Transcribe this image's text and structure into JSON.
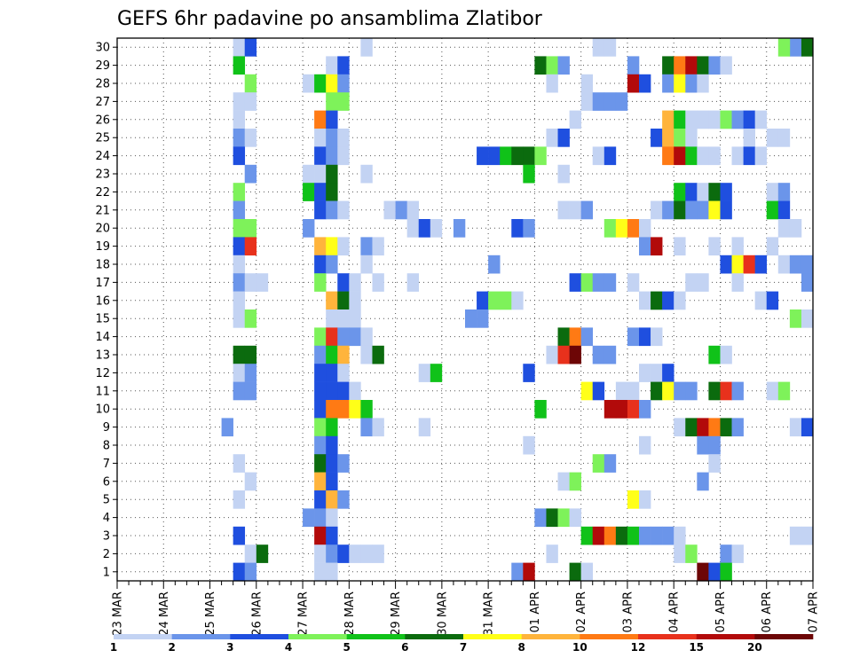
{
  "chart_data": {
    "type": "heatmap",
    "title": "GEFS 6hr padavine po ansamblima Zlatibor",
    "x_tick_labels": [
      "23 MAR",
      "24 MAR",
      "25 MAR",
      "26 MAR",
      "27 MAR",
      "28 MAR",
      "29 MAR",
      "30 MAR",
      "31 MAR",
      "01 APR",
      "02 APR",
      "03 APR",
      "04 APR",
      "05 APR",
      "06 APR",
      "07 APR"
    ],
    "y_tick_labels": [
      "1",
      "2",
      "3",
      "4",
      "5",
      "6",
      "7",
      "8",
      "9",
      "10",
      "11",
      "12",
      "13",
      "14",
      "15",
      "16",
      "17",
      "18",
      "19",
      "20",
      "21",
      "22",
      "23",
      "24",
      "25",
      "26",
      "27",
      "28",
      "29",
      "30"
    ],
    "x_range_steps": [
      0,
      60
    ],
    "steps_per_day": 4,
    "y_range_members": [
      0,
      30
    ],
    "grid": true,
    "legend": {
      "placement": "bottom",
      "levels": [
        "1",
        "2",
        "3",
        "4",
        "5",
        "6",
        "7",
        "8",
        "10",
        "12",
        "15",
        "20"
      ],
      "colors": [
        "#c3d3f3",
        "#6b95ea",
        "#1f4fdf",
        "#7ef25a",
        "#10c219",
        "#0b6b0e",
        "#ffff18",
        "#ffb43c",
        "#ff7a14",
        "#e8311c",
        "#b20a0a",
        "#6d0606"
      ]
    },
    "cells": [
      [
        30,
        10,
        1
      ],
      [
        30,
        11,
        3
      ],
      [
        30,
        21,
        1
      ],
      [
        30,
        41,
        1
      ],
      [
        30,
        42,
        1
      ],
      [
        30,
        58,
        2
      ],
      [
        30,
        57,
        4
      ],
      [
        30,
        59,
        6
      ],
      [
        29,
        10,
        5
      ],
      [
        29,
        18,
        1
      ],
      [
        29,
        19,
        3
      ],
      [
        29,
        36,
        6
      ],
      [
        29,
        37,
        4
      ],
      [
        29,
        38,
        2
      ],
      [
        29,
        44,
        2
      ],
      [
        29,
        47,
        6
      ],
      [
        29,
        48,
        9
      ],
      [
        29,
        49,
        11
      ],
      [
        29,
        50,
        6
      ],
      [
        29,
        51,
        2
      ],
      [
        29,
        52,
        1
      ],
      [
        28,
        11,
        4
      ],
      [
        28,
        16,
        1
      ],
      [
        28,
        17,
        5
      ],
      [
        28,
        18,
        7
      ],
      [
        28,
        19,
        2
      ],
      [
        28,
        37,
        1
      ],
      [
        28,
        40,
        1
      ],
      [
        28,
        44,
        11
      ],
      [
        28,
        45,
        3
      ],
      [
        28,
        47,
        2
      ],
      [
        28,
        48,
        7
      ],
      [
        28,
        49,
        2
      ],
      [
        28,
        50,
        1
      ],
      [
        27,
        10,
        1
      ],
      [
        27,
        11,
        1
      ],
      [
        27,
        18,
        4
      ],
      [
        27,
        19,
        4
      ],
      [
        27,
        40,
        1
      ],
      [
        27,
        41,
        2
      ],
      [
        27,
        42,
        2
      ],
      [
        27,
        43,
        2
      ],
      [
        26,
        10,
        1
      ],
      [
        26,
        17,
        9
      ],
      [
        26,
        18,
        3
      ],
      [
        26,
        39,
        1
      ],
      [
        26,
        47,
        8
      ],
      [
        26,
        48,
        5
      ],
      [
        26,
        49,
        1
      ],
      [
        26,
        50,
        1
      ],
      [
        26,
        51,
        1
      ],
      [
        26,
        52,
        4
      ],
      [
        26,
        53,
        2
      ],
      [
        26,
        54,
        3
      ],
      [
        26,
        55,
        1
      ],
      [
        25,
        10,
        2
      ],
      [
        25,
        11,
        1
      ],
      [
        25,
        17,
        1
      ],
      [
        25,
        18,
        2
      ],
      [
        25,
        19,
        1
      ],
      [
        25,
        37,
        1
      ],
      [
        25,
        38,
        3
      ],
      [
        25,
        46,
        3
      ],
      [
        25,
        47,
        8
      ],
      [
        25,
        48,
        4
      ],
      [
        25,
        49,
        1
      ],
      [
        25,
        54,
        1
      ],
      [
        25,
        56,
        1
      ],
      [
        25,
        57,
        1
      ],
      [
        24,
        10,
        3
      ],
      [
        24,
        17,
        3
      ],
      [
        24,
        18,
        2
      ],
      [
        24,
        19,
        1
      ],
      [
        24,
        31,
        3
      ],
      [
        24,
        32,
        3
      ],
      [
        24,
        33,
        5
      ],
      [
        24,
        34,
        6
      ],
      [
        24,
        35,
        6
      ],
      [
        24,
        36,
        4
      ],
      [
        24,
        41,
        1
      ],
      [
        24,
        42,
        3
      ],
      [
        24,
        47,
        9
      ],
      [
        24,
        48,
        11
      ],
      [
        24,
        49,
        5
      ],
      [
        24,
        50,
        1
      ],
      [
        24,
        51,
        1
      ],
      [
        24,
        53,
        1
      ],
      [
        24,
        54,
        3
      ],
      [
        24,
        55,
        1
      ],
      [
        23,
        11,
        2
      ],
      [
        23,
        16,
        1
      ],
      [
        23,
        17,
        1
      ],
      [
        23,
        18,
        6
      ],
      [
        23,
        21,
        1
      ],
      [
        23,
        35,
        5
      ],
      [
        23,
        38,
        1
      ],
      [
        22,
        10,
        4
      ],
      [
        22,
        16,
        5
      ],
      [
        22,
        17,
        3
      ],
      [
        22,
        18,
        6
      ],
      [
        22,
        48,
        5
      ],
      [
        22,
        49,
        3
      ],
      [
        22,
        50,
        1
      ],
      [
        22,
        51,
        6
      ],
      [
        22,
        52,
        3
      ],
      [
        22,
        56,
        1
      ],
      [
        22,
        57,
        2
      ],
      [
        21,
        10,
        2
      ],
      [
        21,
        17,
        3
      ],
      [
        21,
        18,
        2
      ],
      [
        21,
        19,
        1
      ],
      [
        21,
        23,
        1
      ],
      [
        21,
        24,
        2
      ],
      [
        21,
        25,
        1
      ],
      [
        21,
        38,
        1
      ],
      [
        21,
        39,
        1
      ],
      [
        21,
        40,
        2
      ],
      [
        21,
        46,
        1
      ],
      [
        21,
        47,
        2
      ],
      [
        21,
        48,
        6
      ],
      [
        21,
        49,
        2
      ],
      [
        21,
        50,
        2
      ],
      [
        21,
        51,
        7
      ],
      [
        21,
        52,
        3
      ],
      [
        21,
        56,
        5
      ],
      [
        21,
        57,
        3
      ],
      [
        20,
        10,
        4
      ],
      [
        20,
        11,
        4
      ],
      [
        20,
        16,
        2
      ],
      [
        20,
        25,
        1
      ],
      [
        20,
        26,
        3
      ],
      [
        20,
        27,
        1
      ],
      [
        20,
        29,
        2
      ],
      [
        20,
        34,
        3
      ],
      [
        20,
        35,
        2
      ],
      [
        20,
        42,
        4
      ],
      [
        20,
        43,
        7
      ],
      [
        20,
        44,
        9
      ],
      [
        20,
        45,
        1
      ],
      [
        20,
        57,
        1
      ],
      [
        20,
        58,
        1
      ],
      [
        19,
        10,
        3
      ],
      [
        19,
        11,
        10
      ],
      [
        19,
        17,
        8
      ],
      [
        19,
        18,
        7
      ],
      [
        19,
        19,
        1
      ],
      [
        19,
        21,
        2
      ],
      [
        19,
        22,
        1
      ],
      [
        19,
        45,
        2
      ],
      [
        19,
        46,
        11
      ],
      [
        19,
        48,
        1
      ],
      [
        19,
        51,
        1
      ],
      [
        19,
        53,
        1
      ],
      [
        19,
        56,
        1
      ],
      [
        18,
        10,
        1
      ],
      [
        18,
        17,
        3
      ],
      [
        18,
        18,
        2
      ],
      [
        18,
        21,
        1
      ],
      [
        18,
        32,
        2
      ],
      [
        18,
        52,
        3
      ],
      [
        18,
        53,
        7
      ],
      [
        18,
        54,
        10
      ],
      [
        18,
        55,
        3
      ],
      [
        18,
        57,
        1
      ],
      [
        18,
        58,
        2
      ],
      [
        18,
        59,
        2
      ],
      [
        17,
        10,
        2
      ],
      [
        17,
        11,
        1
      ],
      [
        17,
        12,
        1
      ],
      [
        17,
        17,
        4
      ],
      [
        17,
        19,
        3
      ],
      [
        17,
        20,
        1
      ],
      [
        17,
        22,
        1
      ],
      [
        17,
        25,
        1
      ],
      [
        17,
        39,
        3
      ],
      [
        17,
        40,
        4
      ],
      [
        17,
        41,
        2
      ],
      [
        17,
        42,
        2
      ],
      [
        17,
        44,
        1
      ],
      [
        17,
        49,
        1
      ],
      [
        17,
        50,
        1
      ],
      [
        17,
        53,
        1
      ],
      [
        17,
        59,
        2
      ],
      [
        16,
        10,
        1
      ],
      [
        16,
        18,
        8
      ],
      [
        16,
        19,
        6
      ],
      [
        16,
        20,
        1
      ],
      [
        16,
        31,
        3
      ],
      [
        16,
        32,
        4
      ],
      [
        16,
        33,
        4
      ],
      [
        16,
        34,
        1
      ],
      [
        16,
        45,
        1
      ],
      [
        16,
        46,
        6
      ],
      [
        16,
        47,
        3
      ],
      [
        16,
        48,
        1
      ],
      [
        16,
        55,
        1
      ],
      [
        16,
        56,
        3
      ],
      [
        15,
        10,
        1
      ],
      [
        15,
        11,
        4
      ],
      [
        15,
        18,
        1
      ],
      [
        15,
        19,
        1
      ],
      [
        15,
        20,
        1
      ],
      [
        15,
        30,
        2
      ],
      [
        15,
        31,
        2
      ],
      [
        15,
        58,
        4
      ],
      [
        15,
        59,
        1
      ],
      [
        14,
        17,
        4
      ],
      [
        14,
        18,
        10
      ],
      [
        14,
        19,
        2
      ],
      [
        14,
        20,
        2
      ],
      [
        14,
        21,
        1
      ],
      [
        14,
        38,
        6
      ],
      [
        14,
        39,
        9
      ],
      [
        14,
        40,
        2
      ],
      [
        14,
        44,
        2
      ],
      [
        14,
        45,
        3
      ],
      [
        14,
        46,
        1
      ],
      [
        13,
        10,
        6
      ],
      [
        13,
        11,
        6
      ],
      [
        13,
        17,
        2
      ],
      [
        13,
        18,
        5
      ],
      [
        13,
        19,
        8
      ],
      [
        13,
        21,
        1
      ],
      [
        13,
        22,
        6
      ],
      [
        13,
        37,
        1
      ],
      [
        13,
        38,
        10
      ],
      [
        13,
        39,
        12
      ],
      [
        13,
        41,
        2
      ],
      [
        13,
        42,
        2
      ],
      [
        13,
        51,
        5
      ],
      [
        13,
        52,
        1
      ],
      [
        12,
        10,
        1
      ],
      [
        12,
        11,
        2
      ],
      [
        12,
        17,
        3
      ],
      [
        12,
        18,
        3
      ],
      [
        12,
        19,
        1
      ],
      [
        12,
        26,
        1
      ],
      [
        12,
        27,
        5
      ],
      [
        12,
        35,
        3
      ],
      [
        12,
        45,
        1
      ],
      [
        12,
        46,
        1
      ],
      [
        12,
        47,
        3
      ],
      [
        11,
        10,
        2
      ],
      [
        11,
        11,
        2
      ],
      [
        11,
        17,
        3
      ],
      [
        11,
        18,
        3
      ],
      [
        11,
        19,
        3
      ],
      [
        11,
        20,
        1
      ],
      [
        11,
        40,
        7
      ],
      [
        11,
        41,
        3
      ],
      [
        11,
        43,
        1
      ],
      [
        11,
        44,
        1
      ],
      [
        11,
        46,
        6
      ],
      [
        11,
        47,
        7
      ],
      [
        11,
        48,
        2
      ],
      [
        11,
        49,
        2
      ],
      [
        11,
        51,
        6
      ],
      [
        11,
        52,
        10
      ],
      [
        11,
        53,
        2
      ],
      [
        11,
        56,
        1
      ],
      [
        11,
        57,
        4
      ],
      [
        10,
        17,
        3
      ],
      [
        10,
        18,
        9
      ],
      [
        10,
        19,
        9
      ],
      [
        10,
        20,
        7
      ],
      [
        10,
        21,
        5
      ],
      [
        10,
        36,
        5
      ],
      [
        10,
        42,
        11
      ],
      [
        10,
        43,
        11
      ],
      [
        10,
        44,
        10
      ],
      [
        10,
        45,
        2
      ],
      [
        9,
        9,
        2
      ],
      [
        9,
        17,
        4
      ],
      [
        9,
        18,
        5
      ],
      [
        9,
        21,
        2
      ],
      [
        9,
        22,
        1
      ],
      [
        9,
        26,
        1
      ],
      [
        9,
        48,
        1
      ],
      [
        9,
        49,
        6
      ],
      [
        9,
        50,
        11
      ],
      [
        9,
        51,
        9
      ],
      [
        9,
        52,
        6
      ],
      [
        9,
        53,
        2
      ],
      [
        9,
        58,
        1
      ],
      [
        9,
        59,
        3
      ],
      [
        8,
        17,
        2
      ],
      [
        8,
        18,
        3
      ],
      [
        8,
        35,
        1
      ],
      [
        8,
        45,
        1
      ],
      [
        8,
        50,
        2
      ],
      [
        8,
        51,
        2
      ],
      [
        7,
        10,
        1
      ],
      [
        7,
        17,
        6
      ],
      [
        7,
        18,
        3
      ],
      [
        7,
        19,
        2
      ],
      [
        7,
        41,
        4
      ],
      [
        7,
        42,
        2
      ],
      [
        7,
        51,
        1
      ],
      [
        6,
        11,
        1
      ],
      [
        6,
        17,
        8
      ],
      [
        6,
        18,
        3
      ],
      [
        6,
        38,
        1
      ],
      [
        6,
        39,
        4
      ],
      [
        6,
        50,
        2
      ],
      [
        5,
        10,
        1
      ],
      [
        5,
        17,
        3
      ],
      [
        5,
        18,
        8
      ],
      [
        5,
        19,
        2
      ],
      [
        5,
        44,
        7
      ],
      [
        5,
        45,
        1
      ],
      [
        4,
        16,
        2
      ],
      [
        4,
        17,
        2
      ],
      [
        4,
        18,
        1
      ],
      [
        4,
        36,
        2
      ],
      [
        4,
        37,
        6
      ],
      [
        4,
        38,
        4
      ],
      [
        4,
        39,
        1
      ],
      [
        3,
        10,
        3
      ],
      [
        3,
        17,
        11
      ],
      [
        3,
        18,
        3
      ],
      [
        3,
        40,
        5
      ],
      [
        3,
        41,
        11
      ],
      [
        3,
        42,
        9
      ],
      [
        3,
        43,
        6
      ],
      [
        3,
        44,
        5
      ],
      [
        3,
        45,
        2
      ],
      [
        3,
        46,
        2
      ],
      [
        3,
        47,
        2
      ],
      [
        3,
        48,
        1
      ],
      [
        3,
        58,
        1
      ],
      [
        3,
        59,
        1
      ],
      [
        2,
        11,
        1
      ],
      [
        2,
        12,
        6
      ],
      [
        2,
        17,
        1
      ],
      [
        2,
        18,
        2
      ],
      [
        2,
        19,
        3
      ],
      [
        2,
        20,
        1
      ],
      [
        2,
        21,
        1
      ],
      [
        2,
        22,
        1
      ],
      [
        2,
        37,
        1
      ],
      [
        2,
        48,
        1
      ],
      [
        2,
        49,
        4
      ],
      [
        2,
        52,
        2
      ],
      [
        2,
        53,
        1
      ],
      [
        1,
        10,
        3
      ],
      [
        1,
        11,
        2
      ],
      [
        1,
        17,
        1
      ],
      [
        1,
        18,
        1
      ],
      [
        1,
        34,
        2
      ],
      [
        1,
        35,
        11
      ],
      [
        1,
        39,
        6
      ],
      [
        1,
        40,
        1
      ],
      [
        1,
        50,
        12
      ],
      [
        1,
        51,
        3
      ],
      [
        1,
        52,
        5
      ]
    ]
  }
}
